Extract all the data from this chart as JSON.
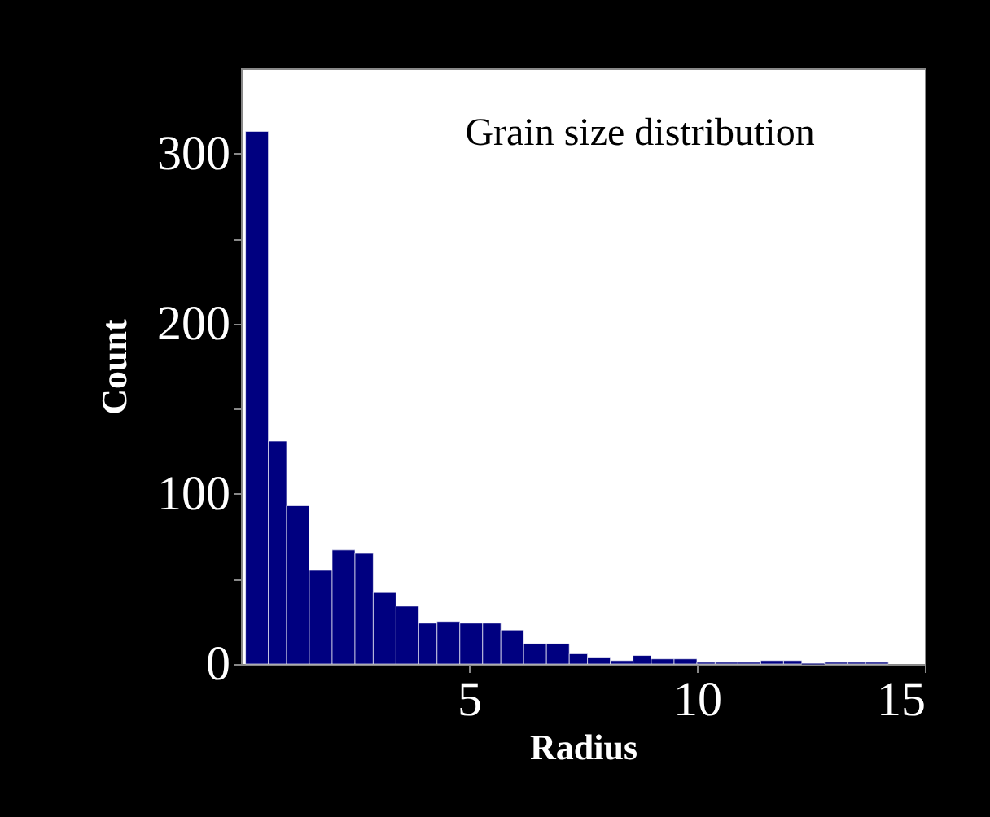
{
  "chart_data": {
    "type": "histogram",
    "annotations": [
      "Grain size distribution"
    ],
    "xlabel": "Radius",
    "ylabel": "Count",
    "bins": [
      0.1,
      0.6,
      1.0,
      1.5,
      2.0,
      2.5,
      2.9,
      3.4,
      3.9,
      4.3,
      4.8,
      5.3,
      5.7,
      6.2,
      6.7,
      7.2,
      7.6,
      8.1,
      8.6,
      9.0,
      9.5,
      10.0,
      10.4,
      10.9,
      11.4,
      11.9,
      12.3,
      12.8,
      13.3,
      13.7,
      14.2
    ],
    "values": [
      313,
      131,
      93,
      55,
      67,
      65,
      42,
      34,
      24,
      25,
      24,
      24,
      20,
      12,
      12,
      6,
      4,
      2,
      5,
      3,
      3,
      1,
      1,
      1,
      2,
      2,
      0,
      1,
      1,
      1
    ],
    "color": "#000080",
    "xlim": [
      0,
      15
    ],
    "xticks": [
      5,
      10,
      15
    ],
    "ylim": [
      0,
      350
    ],
    "yticks": [
      {
        "value": 0,
        "label": "0"
      },
      {
        "value": 50,
        "label": null
      },
      100,
      {
        "value": 150,
        "label": null
      },
      200,
      {
        "value": 250,
        "label": null
      },
      300
    ],
    "grid": false
  }
}
